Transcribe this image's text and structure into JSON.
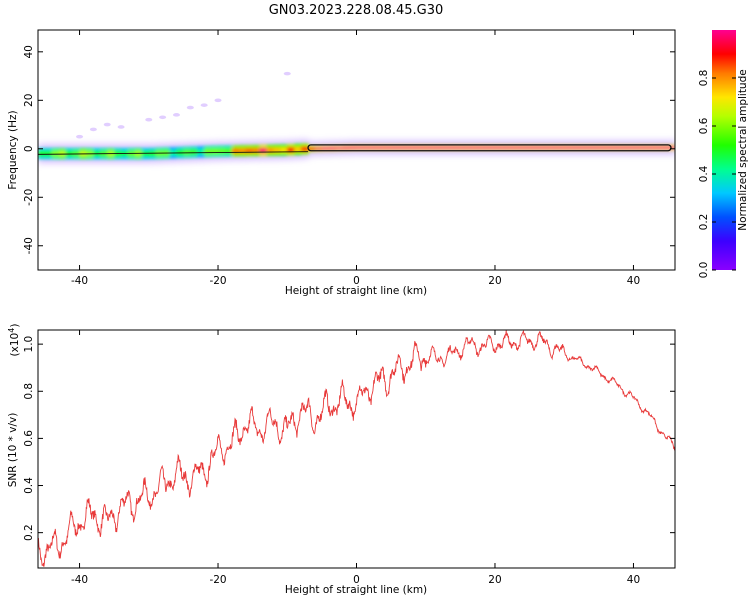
{
  "figure_title": "GN03.2023.228.08.45.G30",
  "colors": {
    "snr_line": "#e83a3a",
    "track_ring": "#111111",
    "axes": "#000000"
  },
  "chart_data": [
    {
      "type": "heatmap",
      "xlabel": "Height of straight line (km)",
      "ylabel": "Frequency (Hz)",
      "xlim": [
        -46,
        46
      ],
      "ylim": [
        -50,
        49
      ],
      "xticks": [
        -40,
        -20,
        0,
        20,
        40
      ],
      "yticks": [
        -40,
        -20,
        0,
        20,
        40
      ],
      "colorbar": {
        "label": "Normalized spectral amplitude",
        "range": [
          0,
          1
        ],
        "ticks": [
          0.0,
          0.2,
          0.4,
          0.6,
          0.8
        ],
        "colormap": "rainbow (violet → blue → cyan → green → yellow → red → magenta)"
      },
      "description_points": {
        "ridge_frequency_hz": [
          [
            -46,
            -2
          ],
          [
            -40,
            -2
          ],
          [
            -30,
            -2
          ],
          [
            -20,
            -1
          ],
          [
            -10,
            -0.5
          ],
          [
            -7,
            0
          ],
          [
            0,
            0.5
          ],
          [
            10,
            0.5
          ],
          [
            20,
            0.5
          ],
          [
            30,
            0.5
          ],
          [
            46,
            0.5
          ]
        ],
        "ridge_amplitude": [
          [
            -46,
            0.55
          ],
          [
            -40,
            0.6
          ],
          [
            -35,
            0.55
          ],
          [
            -30,
            0.55
          ],
          [
            -25,
            0.5
          ],
          [
            -20,
            0.55
          ],
          [
            -15,
            0.9
          ],
          [
            -10,
            0.75
          ],
          [
            -5,
            1.0
          ],
          [
            0,
            1.0
          ],
          [
            10,
            1.0
          ],
          [
            20,
            1.0
          ],
          [
            30,
            1.0
          ],
          [
            40,
            1.0
          ],
          [
            46,
            1.0
          ]
        ],
        "weak_scatter": [
          [
            -40,
            5
          ],
          [
            -38,
            8
          ],
          [
            -36,
            10
          ],
          [
            -34,
            9
          ],
          [
            -30,
            12
          ],
          [
            -28,
            13
          ],
          [
            -26,
            14
          ],
          [
            -24,
            17
          ],
          [
            -22,
            18
          ],
          [
            -20,
            20
          ],
          [
            -10,
            31
          ]
        ]
      }
    },
    {
      "type": "line",
      "xlabel": "Height of straight line (km)",
      "ylabel": "SNR (10 * v/v)",
      "y_multiplier": "(x10^4)",
      "xlim": [
        -46,
        46
      ],
      "ylim": [
        0.05,
        1.06
      ],
      "xticks": [
        -40,
        -20,
        0,
        20,
        40
      ],
      "yticks": [
        0.2,
        0.4,
        0.6,
        0.8,
        1.0
      ],
      "series": [
        {
          "x": [
            -46,
            -44,
            -42,
            -40,
            -38,
            -36,
            -34,
            -32,
            -30,
            -28,
            -26,
            -24,
            -22,
            -20,
            -18,
            -16,
            -14,
            -12,
            -10,
            -8,
            -6,
            -4,
            -2,
            0,
            2,
            4,
            6,
            8,
            10,
            12,
            14,
            16,
            18,
            20,
            22,
            24,
            26,
            28,
            30,
            32,
            34,
            36,
            38,
            40,
            42,
            44,
            46
          ],
          "y": [
            0.12,
            0.13,
            0.18,
            0.25,
            0.28,
            0.24,
            0.31,
            0.33,
            0.36,
            0.4,
            0.45,
            0.43,
            0.46,
            0.55,
            0.58,
            0.66,
            0.64,
            0.67,
            0.63,
            0.72,
            0.68,
            0.74,
            0.76,
            0.75,
            0.82,
            0.85,
            0.89,
            0.93,
            0.95,
            0.94,
            0.96,
            1.0,
            0.99,
            1.0,
            1.01,
            1.01,
            1.02,
            0.99,
            0.96,
            0.93,
            0.9,
            0.86,
            0.82,
            0.77,
            0.71,
            0.63,
            0.56
          ]
        }
      ]
    }
  ]
}
